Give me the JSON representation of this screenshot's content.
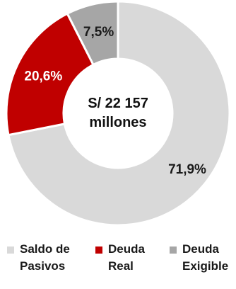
{
  "chart_data": {
    "type": "pie",
    "donut": true,
    "center_text": [
      "S/ 22 157",
      "millones"
    ],
    "slices": [
      {
        "name": "Saldo de Pasivos",
        "legend_lines": [
          "Saldo de",
          "Pasivos"
        ],
        "value": 71.9,
        "label": "71,9%",
        "color": "#d9d9d9",
        "label_color": "#1a1a1a"
      },
      {
        "name": "Deuda Real",
        "legend_lines": [
          "Deuda",
          "Real"
        ],
        "value": 20.6,
        "label": "20,6%",
        "color": "#c00000",
        "label_color": "#ffffff"
      },
      {
        "name": "Deuda Exigible",
        "legend_lines": [
          "Deuda",
          "Exigible"
        ],
        "value": 7.5,
        "label": "7,5%",
        "color": "#a6a6a6",
        "label_color": "#1a1a1a"
      }
    ],
    "legend_position": "bottom"
  }
}
